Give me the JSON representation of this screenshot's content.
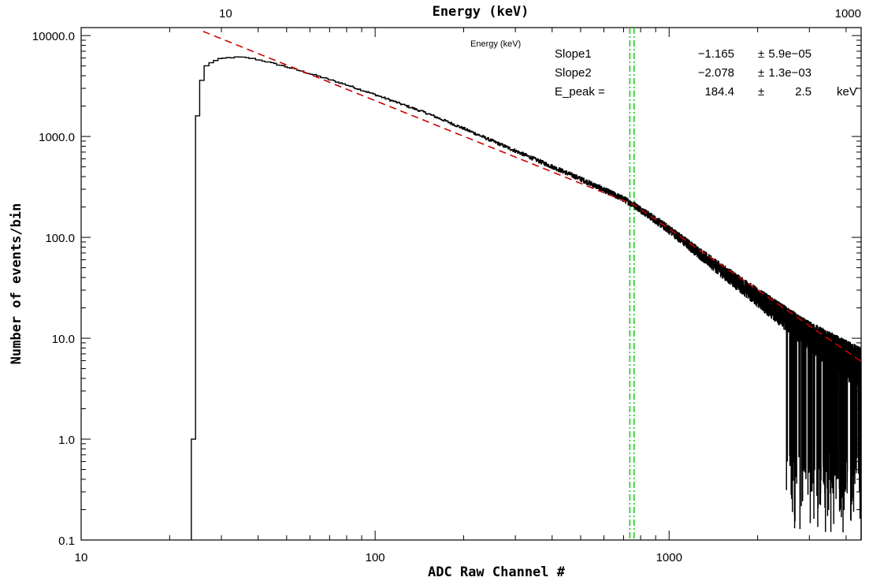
{
  "chart_data": {
    "type": "line",
    "title": "",
    "xlabel": "ADC Raw Channel #",
    "ylabel": "Number of events/bin",
    "top_xlabel": "Energy (keV)",
    "x_scale": "log",
    "y_scale": "log",
    "xlim": [
      10,
      4500
    ],
    "ylim": [
      0.1,
      12000
    ],
    "grid": false,
    "x_ticks": [
      {
        "value": 10,
        "label": "10"
      },
      {
        "value": 100,
        "label": "100"
      },
      {
        "value": 1000,
        "label": "1000"
      }
    ],
    "y_ticks": [
      {
        "value": 0.1,
        "label": "0.1"
      },
      {
        "value": 1,
        "label": "1.0"
      },
      {
        "value": 10,
        "label": "10.0"
      },
      {
        "value": 100,
        "label": "100.0"
      },
      {
        "value": 1000,
        "label": "1000.0"
      },
      {
        "value": 10000,
        "label": "10000.0"
      }
    ],
    "top_x_ticks": [
      {
        "label": "10",
        "channel": 31
      },
      {
        "label": "1000",
        "channel": 4500
      }
    ],
    "series": [
      {
        "role": "histogram",
        "color": "#000000",
        "x": [
          23.7,
          24.5,
          25.3,
          26.2,
          27.2,
          28.5,
          30,
          32,
          35,
          38,
          42,
          50,
          60,
          80,
          100,
          150,
          200,
          300,
          500,
          700,
          760,
          1000,
          1500,
          2000,
          3000,
          4500
        ],
        "y": [
          1.0,
          1600,
          3600,
          4700,
          5300,
          5600,
          5900,
          6050,
          6100,
          5950,
          5600,
          4900,
          4200,
          3250,
          2600,
          1700,
          1200,
          720,
          380,
          240,
          210,
          120,
          48,
          26,
          11,
          5.5
        ]
      },
      {
        "role": "fit",
        "color": "#cc0000",
        "line_style": "dashed",
        "x": [
          26,
          760,
          4500
        ],
        "y": [
          11000,
          210,
          5.9
        ]
      }
    ],
    "markers": [
      {
        "type": "vertical-line",
        "x": 735,
        "color": "#22cc22",
        "style": "dash-dot"
      },
      {
        "type": "vertical-line",
        "x": 760,
        "color": "#22cc22",
        "style": "dash-dot"
      }
    ],
    "annotations": {
      "label": "Energy (keV)",
      "rows": [
        {
          "name": "Slope1",
          "value": "−1.165",
          "pm": "±",
          "error": "5.9e−05",
          "unit": ""
        },
        {
          "name": "Slope2",
          "value": "−2.078",
          "pm": "±",
          "error": "1.3e−03",
          "unit": ""
        },
        {
          "name": "E_peak =",
          "value": "184.4",
          "pm": "±",
          "error": "2.5",
          "unit": "keV"
        }
      ]
    }
  }
}
